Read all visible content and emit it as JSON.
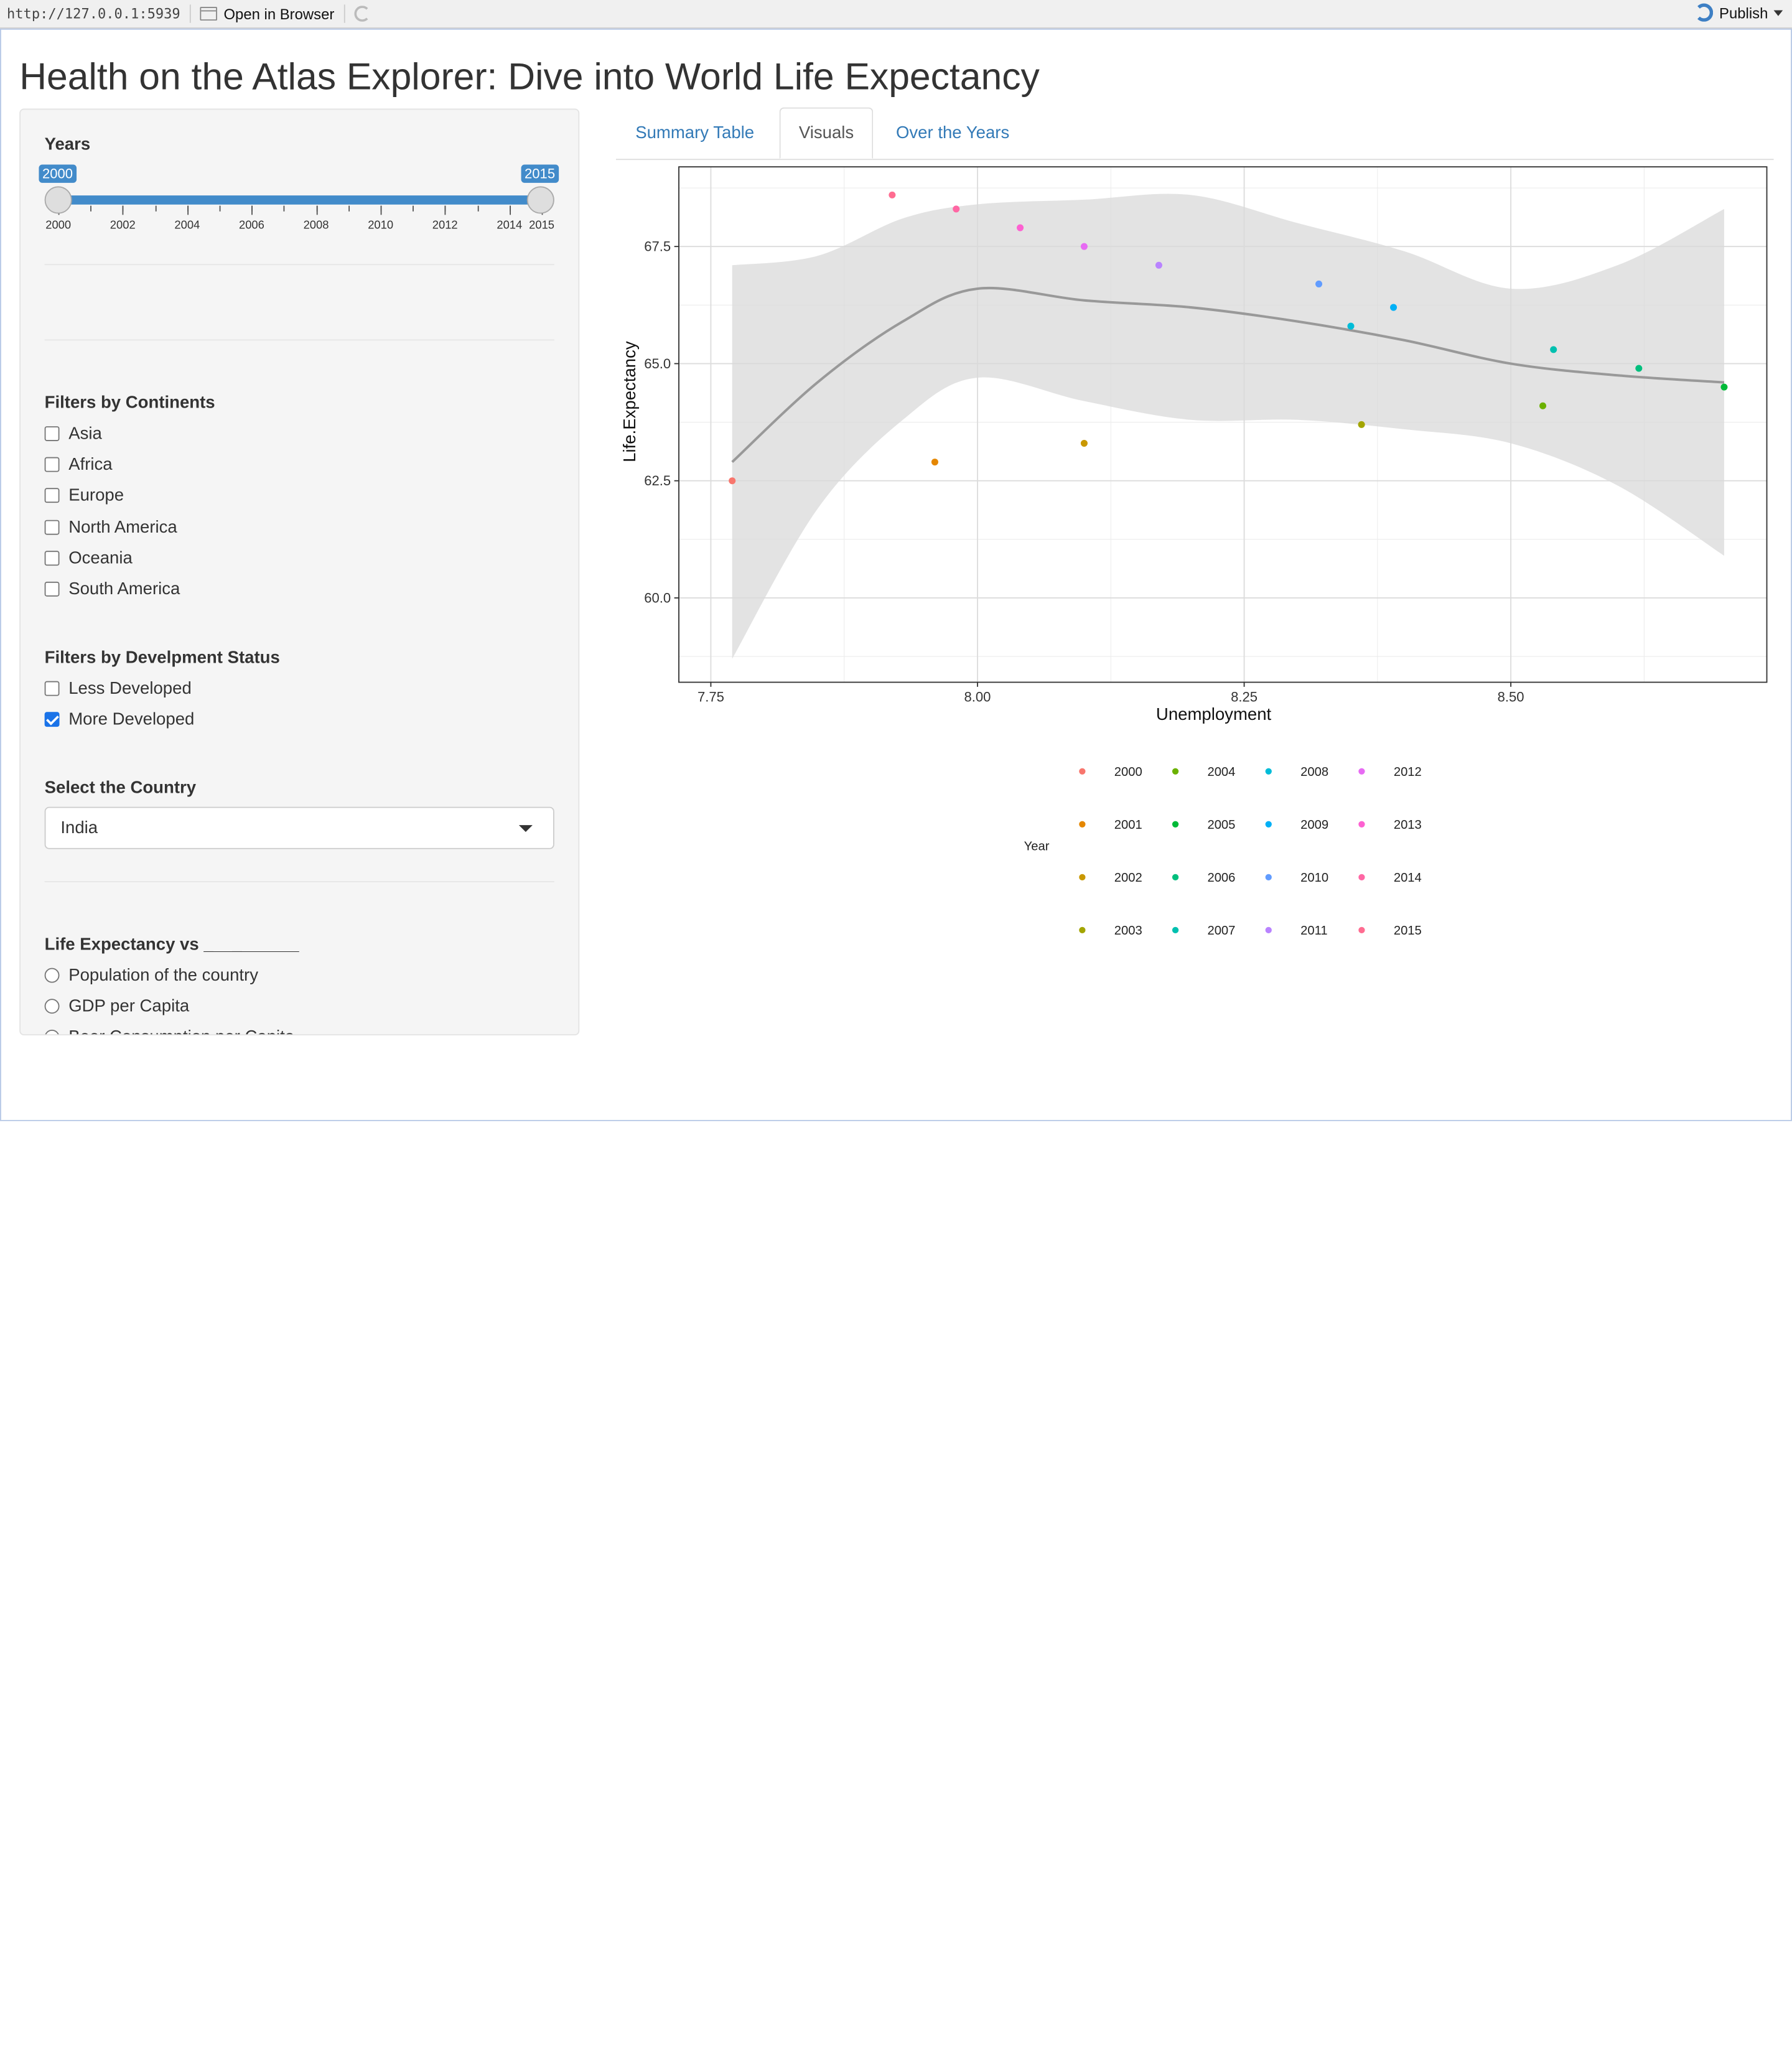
{
  "topbar": {
    "url": "http://127.0.0.1:5939",
    "open_in_browser": "Open in Browser",
    "publish": "Publish",
    "icons": [
      "window-icon",
      "refresh-icon",
      "publish-icon",
      "chevron-down-icon"
    ]
  },
  "page": {
    "title": "Health on the Atlas Explorer: Dive into World Life Expectancy"
  },
  "sidebar": {
    "years": {
      "label": "Years",
      "min": 2000,
      "max": 2015,
      "from": "2000",
      "to": "2015",
      "ticks": [
        "2000",
        "2002",
        "2004",
        "2006",
        "2008",
        "2010",
        "2012",
        "2014",
        "2015"
      ]
    },
    "continents": {
      "label": "Filters by Continents",
      "options": [
        {
          "label": "Asia",
          "checked": false
        },
        {
          "label": "Africa",
          "checked": false
        },
        {
          "label": "Europe",
          "checked": false
        },
        {
          "label": "North America",
          "checked": false
        },
        {
          "label": "Oceania",
          "checked": false
        },
        {
          "label": "South America",
          "checked": false
        }
      ]
    },
    "development": {
      "label": "Filters by Develpment Status",
      "options": [
        {
          "label": "Less Developed",
          "checked": false
        },
        {
          "label": "More Developed",
          "checked": true
        }
      ]
    },
    "country": {
      "label": "Select the Country",
      "value": "India"
    },
    "versus": {
      "label": "Life Expectancy vs __________",
      "options": [
        "Population of the country",
        "GDP per Capita",
        "Beer Consumption per Capita"
      ]
    }
  },
  "tabs": [
    {
      "label": "Summary Table",
      "active": false
    },
    {
      "label": "Visuals",
      "active": true
    },
    {
      "label": "Over the Years",
      "active": false
    }
  ],
  "chart_data": {
    "type": "scatter",
    "xlabel": "Unemployment",
    "ylabel": "Life.Expectancy",
    "xlim": [
      7.72,
      8.74
    ],
    "ylim": [
      58.2,
      69.2
    ],
    "xticks": [
      "7.75",
      "8.00",
      "8.25",
      "8.50"
    ],
    "yticks": [
      "60.0",
      "62.5",
      "65.0",
      "67.5"
    ],
    "grid": true,
    "smooth": "loess with confidence band",
    "legend_title": "Year",
    "legend_position": "bottom",
    "points": [
      {
        "year": "2000",
        "x": 7.77,
        "y": 62.5,
        "color": "#F8766D"
      },
      {
        "year": "2001",
        "x": 7.96,
        "y": 62.9,
        "color": "#E58700"
      },
      {
        "year": "2002",
        "x": 8.1,
        "y": 63.3,
        "color": "#C99800"
      },
      {
        "year": "2003",
        "x": 8.36,
        "y": 63.7,
        "color": "#A3A500"
      },
      {
        "year": "2004",
        "x": 8.53,
        "y": 64.1,
        "color": "#6BB100"
      },
      {
        "year": "2005",
        "x": 8.7,
        "y": 64.5,
        "color": "#00BA38"
      },
      {
        "year": "2006",
        "x": 8.62,
        "y": 64.9,
        "color": "#00BF7D"
      },
      {
        "year": "2007",
        "x": 8.54,
        "y": 65.3,
        "color": "#00C0AF"
      },
      {
        "year": "2008",
        "x": 8.35,
        "y": 65.8,
        "color": "#00BCD8"
      },
      {
        "year": "2009",
        "x": 8.39,
        "y": 66.2,
        "color": "#00B0F6"
      },
      {
        "year": "2010",
        "x": 8.32,
        "y": 66.7,
        "color": "#619CFF"
      },
      {
        "year": "2011",
        "x": 8.17,
        "y": 67.1,
        "color": "#B983FF"
      },
      {
        "year": "2012",
        "x": 8.1,
        "y": 67.5,
        "color": "#E76BF3"
      },
      {
        "year": "2013",
        "x": 8.04,
        "y": 67.9,
        "color": "#FD61D1"
      },
      {
        "year": "2014",
        "x": 7.98,
        "y": 68.3,
        "color": "#FF67A4"
      },
      {
        "year": "2015",
        "x": 7.92,
        "y": 68.6,
        "color": "#FF6C91"
      }
    ],
    "smooth_line": [
      [
        7.77,
        62.9
      ],
      [
        7.85,
        64.6
      ],
      [
        7.93,
        65.9
      ],
      [
        8.0,
        66.6
      ],
      [
        8.1,
        66.35
      ],
      [
        8.2,
        66.2
      ],
      [
        8.3,
        65.9
      ],
      [
        8.4,
        65.5
      ],
      [
        8.5,
        65.0
      ],
      [
        8.6,
        64.75
      ],
      [
        8.7,
        64.6
      ]
    ],
    "band_upper": [
      [
        7.77,
        67.1
      ],
      [
        7.85,
        67.3
      ],
      [
        7.93,
        68.1
      ],
      [
        8.0,
        68.4
      ],
      [
        8.1,
        68.5
      ],
      [
        8.2,
        68.6
      ],
      [
        8.3,
        68.0
      ],
      [
        8.4,
        67.4
      ],
      [
        8.5,
        66.6
      ],
      [
        8.6,
        67.1
      ],
      [
        8.7,
        68.3
      ]
    ],
    "band_lower": [
      [
        7.77,
        58.7
      ],
      [
        7.85,
        61.9
      ],
      [
        7.93,
        63.8
      ],
      [
        8.0,
        64.7
      ],
      [
        8.1,
        64.2
      ],
      [
        8.2,
        63.8
      ],
      [
        8.3,
        63.8
      ],
      [
        8.4,
        63.6
      ],
      [
        8.5,
        63.3
      ],
      [
        8.6,
        62.4
      ],
      [
        8.7,
        60.9
      ]
    ]
  }
}
